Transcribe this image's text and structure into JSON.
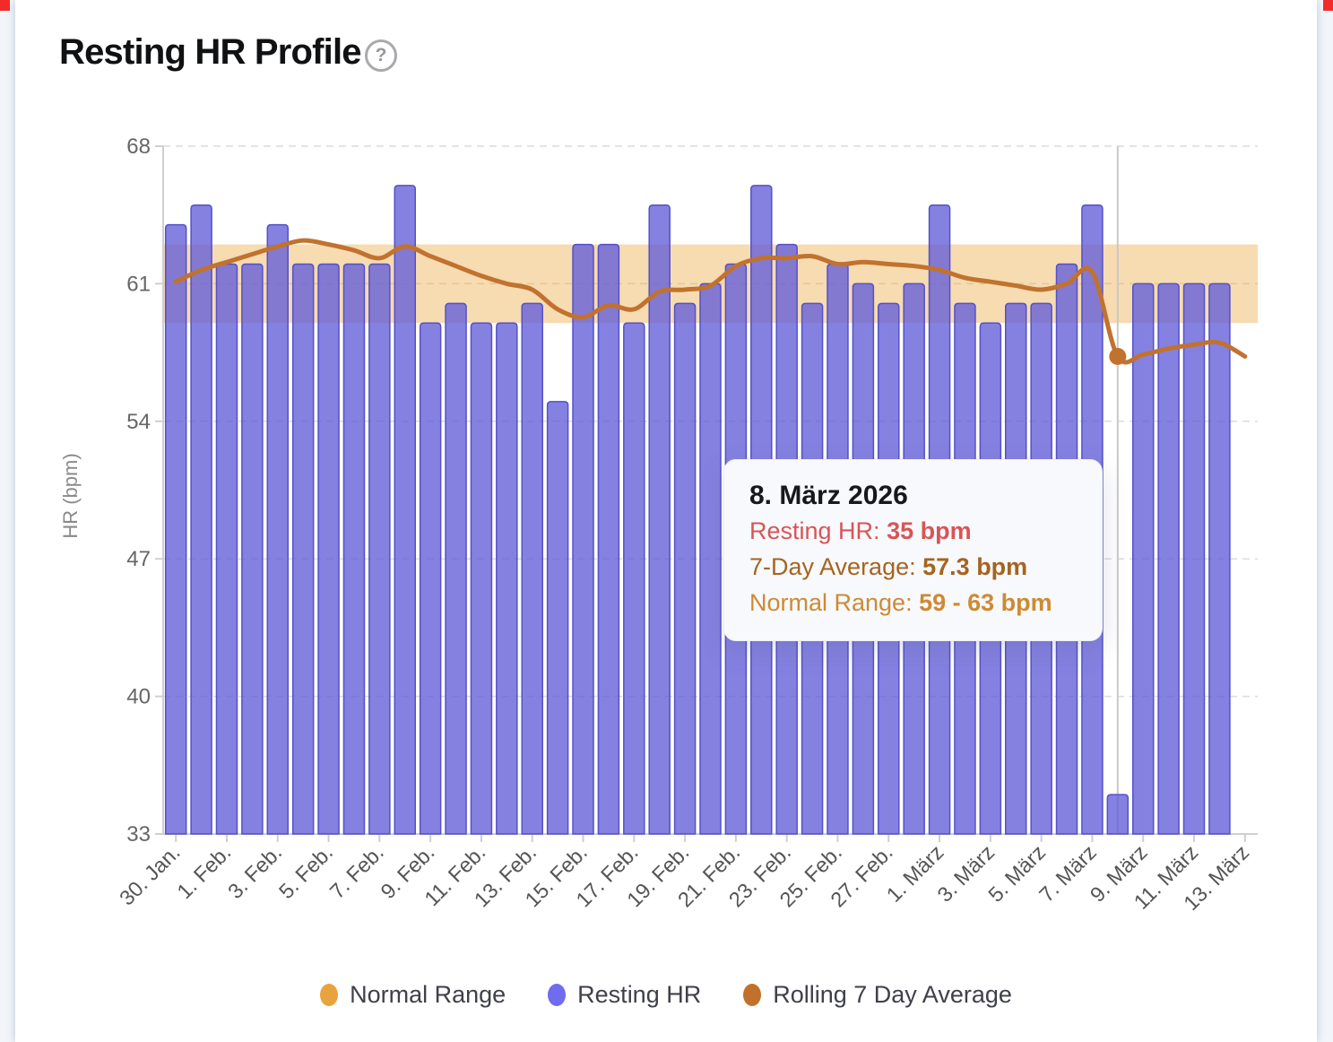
{
  "page": {
    "background": "#f2f6fa",
    "card_background": "#ffffff"
  },
  "header": {
    "title": "Resting HR Profile",
    "help_glyph": "?"
  },
  "chart_data": {
    "type": "bar",
    "title": "Resting HR Profile",
    "ylabel": "HR (bpm)",
    "ylim": [
      33,
      68
    ],
    "yticks": [
      68,
      61,
      54,
      47,
      40,
      33
    ],
    "grid": true,
    "num_days": 43,
    "x_tick_step": 2,
    "x_tick_labels": [
      "30. Jan.",
      "1. Feb.",
      "3. Feb.",
      "5. Feb.",
      "7. Feb.",
      "9. Feb.",
      "11. Feb.",
      "13. Feb.",
      "15. Feb.",
      "17. Feb.",
      "19. Feb.",
      "21. Feb.",
      "23. Feb.",
      "25. Feb.",
      "27. Feb.",
      "1. März",
      "3. März",
      "5. März",
      "7. März",
      "9. März",
      "11. März",
      "13. März"
    ],
    "series": [
      {
        "name": "Resting HR",
        "type": "bar",
        "fill": "rgba(99,94,216,0.78)",
        "stroke": "#5551c9",
        "values": [
          64,
          65,
          62,
          62,
          64,
          62,
          62,
          62,
          62,
          66,
          59,
          60,
          59,
          59,
          60,
          55,
          63,
          63,
          59,
          65,
          60,
          61,
          62,
          66,
          63,
          60,
          62,
          61,
          60,
          61,
          65,
          60,
          59,
          60,
          60,
          62,
          65,
          35,
          61,
          61,
          61,
          61,
          null
        ]
      },
      {
        "name": "Rolling 7 Day Average",
        "type": "line",
        "color": "#c1722e",
        "values": [
          61.1,
          61.7,
          62.1,
          62.5,
          62.9,
          63.2,
          63.0,
          62.7,
          62.3,
          62.9,
          62.4,
          61.9,
          61.4,
          61.0,
          60.7,
          59.7,
          59.3,
          59.9,
          59.7,
          60.6,
          60.7,
          60.9,
          61.9,
          62.3,
          62.3,
          62.4,
          62.0,
          62.1,
          62.0,
          61.9,
          61.7,
          61.3,
          61.1,
          60.9,
          60.7,
          61.0,
          61.6,
          57.3,
          57.4,
          57.7,
          57.9,
          58.0,
          57.3
        ]
      },
      {
        "name": "Normal Range",
        "type": "band",
        "from": 59,
        "to": 63,
        "color": "rgba(233,160,50,0.38)"
      }
    ],
    "highlight": {
      "day_index": 37,
      "bar_value": 35,
      "line_value": 57.3,
      "crosshair": true
    },
    "axis_colors": {
      "grid": "#dcdcdc",
      "axis": "#cfcfcf",
      "tick_label": "#666666",
      "x_label": "#555555",
      "axis_title": "#8a8a8a",
      "crosshair": "#c9c9c9"
    }
  },
  "tooltip": {
    "title": "8. März 2026",
    "rows": [
      {
        "label": "Resting HR:",
        "value": "35 bpm",
        "color": "#d85555"
      },
      {
        "label": "7-Day Average:",
        "value": "57.3 bpm",
        "color": "#a5641f"
      },
      {
        "label": "Normal Range:",
        "value": "59 - 63 bpm",
        "color": "#ce8a33"
      }
    ]
  },
  "legend": {
    "items": [
      {
        "label": "Normal Range",
        "color": "#e9a33c"
      },
      {
        "label": "Resting HR",
        "color": "#706cf0"
      },
      {
        "label": "Rolling 7 Day Average",
        "color": "#c1712b"
      }
    ]
  }
}
